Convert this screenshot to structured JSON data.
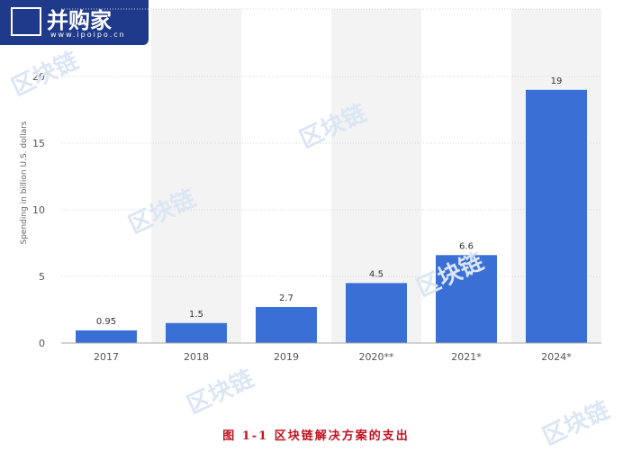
{
  "logo": {
    "text": "并购家",
    "url": "www.ipoipo.cn"
  },
  "watermark": {
    "text": "区块链"
  },
  "caption": "图  1-1 区块链解决方案的支出",
  "chart_data": {
    "type": "bar",
    "categories": [
      "2017",
      "2018",
      "2019",
      "2020**",
      "2021*",
      "2024*"
    ],
    "values": [
      0.95,
      1.5,
      2.7,
      4.5,
      6.6,
      19
    ],
    "value_labels": [
      "0.95",
      "1.5",
      "2.7",
      "4.5",
      "6.6",
      "19"
    ],
    "ylabel": "Spending in billion U.S. dollars",
    "ylim": [
      0,
      20
    ],
    "yticks": [
      0,
      5,
      10,
      15,
      20
    ],
    "grid": true,
    "colors": {
      "bar": "#3a6fd6",
      "band": "#f3f3f3",
      "grid": "#d4d4d4",
      "text": "#555555"
    }
  }
}
